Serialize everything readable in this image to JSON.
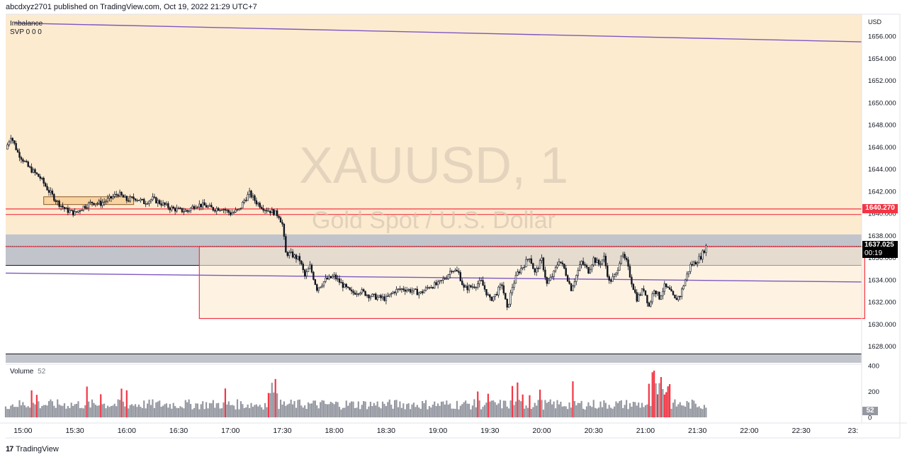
{
  "header": {
    "publisher_line": "abcdxyz2701 published on TradingView.com, Oct 19, 2022 21:29 UTC+7"
  },
  "legend": {
    "indicator_1": "Imbalance",
    "indicator_2": "SVP  0  0  0",
    "volume_label": "Volume",
    "volume_value": "52"
  },
  "watermark": {
    "symbol": "XAUUSD, 1",
    "description": "Gold Spot / U.S. Dollar"
  },
  "footer": {
    "brand": "TradingView"
  },
  "price_axis": {
    "currency": "USD",
    "highlight_level_label": "1640.270",
    "last_price_label": "1637.025",
    "countdown": "00:19",
    "volume_axis_ticks": [
      "400",
      "200",
      "0"
    ],
    "volume_last_label": "52"
  },
  "colors": {
    "up": "#131722",
    "down": "#131722",
    "volume_bar": "#9598a1",
    "volume_highlight": "#f23645",
    "zone_fill": "#fdebd0",
    "gray_zone": "#b2b5be",
    "red_line": "#f23645",
    "purple_line": "#7e57c2",
    "price_tag_red": "#f23645",
    "price_tag_black": "#000000"
  },
  "chart_data": {
    "type": "candlestick",
    "title": "XAUUSD, 1",
    "subtitle": "Gold Spot / U.S. Dollar",
    "ylim": [
      1626.5,
      1658
    ],
    "y_ticks": [
      1628,
      1630,
      1632,
      1634,
      1636,
      1638,
      1640,
      1642,
      1644,
      1646,
      1648,
      1650,
      1652,
      1654,
      1656
    ],
    "x_ticks": [
      "15:00",
      "15:30",
      "16:00",
      "16:30",
      "17:00",
      "17:30",
      "18:00",
      "18:30",
      "19:00",
      "19:30",
      "20:00",
      "20:30",
      "21:00",
      "21:30",
      "22:00",
      "22:30",
      "23:"
    ],
    "x_range_minutes": [
      890,
      1385
    ],
    "price_path": [
      [
        890,
        1645.8
      ],
      [
        893,
        1647.0
      ],
      [
        897,
        1645.5
      ],
      [
        903,
        1644.2
      ],
      [
        910,
        1643.2
      ],
      [
        915,
        1642.0
      ],
      [
        920,
        1641.0
      ],
      [
        925,
        1640.3
      ],
      [
        930,
        1640.0
      ],
      [
        935,
        1640.6
      ],
      [
        940,
        1641.0
      ],
      [
        945,
        1640.9
      ],
      [
        950,
        1641.3
      ],
      [
        955,
        1641.8
      ],
      [
        960,
        1641.2
      ],
      [
        965,
        1641.4
      ],
      [
        970,
        1641.0
      ],
      [
        975,
        1641.3
      ],
      [
        980,
        1640.9
      ],
      [
        985,
        1640.5
      ],
      [
        990,
        1640.3
      ],
      [
        995,
        1640.2
      ],
      [
        1000,
        1640.8
      ],
      [
        1005,
        1640.7
      ],
      [
        1010,
        1640.4
      ],
      [
        1015,
        1640.5
      ],
      [
        1020,
        1640.0
      ],
      [
        1025,
        1640.3
      ],
      [
        1028,
        1641.2
      ],
      [
        1031,
        1641.8
      ],
      [
        1035,
        1641.0
      ],
      [
        1040,
        1640.4
      ],
      [
        1045,
        1640.1
      ],
      [
        1048,
        1639.8
      ],
      [
        1050,
        1639.0
      ],
      [
        1052,
        1636.4
      ],
      [
        1055,
        1636.3
      ],
      [
        1060,
        1635.8
      ],
      [
        1063,
        1634.3
      ],
      [
        1066,
        1635.2
      ],
      [
        1070,
        1633.2
      ],
      [
        1075,
        1634.0
      ],
      [
        1080,
        1634.3
      ],
      [
        1085,
        1633.5
      ],
      [
        1090,
        1632.8
      ],
      [
        1095,
        1633.0
      ],
      [
        1100,
        1632.6
      ],
      [
        1105,
        1632.4
      ],
      [
        1110,
        1632.3
      ],
      [
        1115,
        1633.0
      ],
      [
        1120,
        1633.2
      ],
      [
        1125,
        1633.0
      ],
      [
        1130,
        1632.8
      ],
      [
        1135,
        1633.4
      ],
      [
        1140,
        1633.6
      ],
      [
        1145,
        1634.3
      ],
      [
        1148,
        1635.0
      ],
      [
        1152,
        1634.6
      ],
      [
        1155,
        1633.2
      ],
      [
        1160,
        1633.4
      ],
      [
        1165,
        1633.8
      ],
      [
        1170,
        1632.2
      ],
      [
        1173,
        1632.6
      ],
      [
        1177,
        1633.6
      ],
      [
        1180,
        1631.3
      ],
      [
        1183,
        1633.4
      ],
      [
        1186,
        1634.6
      ],
      [
        1190,
        1635.4
      ],
      [
        1193,
        1636.1
      ],
      [
        1196,
        1634.6
      ],
      [
        1200,
        1635.8
      ],
      [
        1203,
        1633.6
      ],
      [
        1207,
        1634.6
      ],
      [
        1210,
        1635.8
      ],
      [
        1213,
        1635.0
      ],
      [
        1217,
        1633.2
      ],
      [
        1220,
        1634.4
      ],
      [
        1223,
        1635.6
      ],
      [
        1227,
        1634.8
      ],
      [
        1230,
        1635.9
      ],
      [
        1233,
        1635.4
      ],
      [
        1236,
        1636.0
      ],
      [
        1239,
        1633.8
      ],
      [
        1243,
        1634.5
      ],
      [
        1246,
        1636.3
      ],
      [
        1249,
        1635.6
      ],
      [
        1252,
        1633.8
      ],
      [
        1255,
        1632.3
      ],
      [
        1259,
        1633.2
      ],
      [
        1262,
        1631.6
      ],
      [
        1265,
        1633.2
      ],
      [
        1268,
        1632.4
      ],
      [
        1271,
        1633.4
      ],
      [
        1274,
        1633.0
      ],
      [
        1277,
        1632.2
      ],
      [
        1280,
        1632.6
      ],
      [
        1283,
        1634.0
      ],
      [
        1286,
        1635.3
      ],
      [
        1289,
        1635.6
      ],
      [
        1292,
        1636.1
      ],
      [
        1295,
        1637.0
      ]
    ],
    "volume_ylim": [
      0,
      400
    ],
    "volume_last": 52,
    "overlays": {
      "red_horizontal_levels": [
        1640.4,
        1639.9,
        1637.0
      ],
      "red_box": {
        "x": [
          1002,
          1295
        ],
        "y": [
          1630.5,
          1637.0
        ]
      },
      "gray_zone_top": [
        1635.3,
        1638.1
      ],
      "gray_zone_bottom": [
        1626.5,
        1627.3
      ],
      "orange_box": {
        "x": [
          912,
          964
        ],
        "y": [
          1640.8,
          1641.5
        ]
      },
      "purple_line_top": {
        "p1": [
          895,
          1657.2
        ],
        "p2": [
          1385,
          1655.5
        ]
      },
      "purple_line_mid": {
        "p1": [
          890,
          1634.6
        ],
        "p2": [
          1385,
          1633.8
        ]
      }
    }
  }
}
